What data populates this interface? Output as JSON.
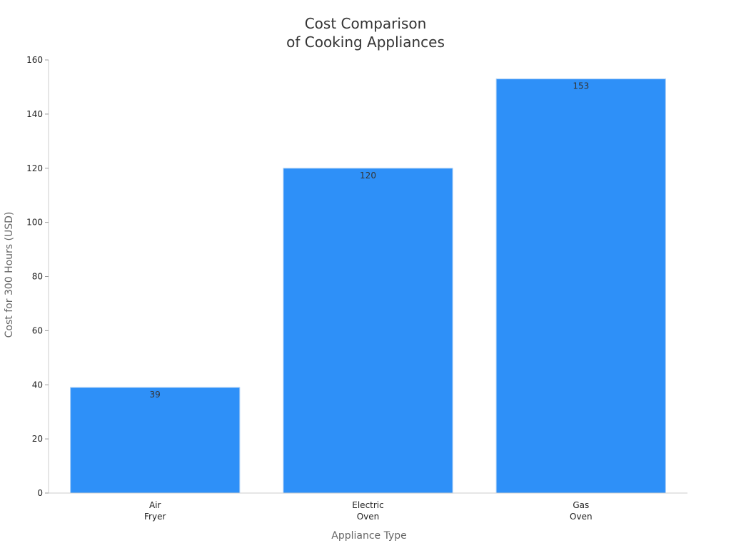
{
  "chart_data": {
    "type": "bar",
    "title_lines": [
      "Cost Comparison",
      "of Cooking Appliances"
    ],
    "xlabel": "Appliance Type",
    "ylabel": "Cost for 300 Hours (USD)",
    "categories": [
      [
        "Air",
        "Fryer"
      ],
      [
        "Electric",
        "Oven"
      ],
      [
        "Gas",
        "Oven"
      ]
    ],
    "values": [
      39,
      120,
      153
    ],
    "value_labels": [
      "39",
      "120",
      "153"
    ],
    "ylim": [
      0,
      160
    ],
    "yticks": [
      0,
      20,
      40,
      60,
      80,
      100,
      120,
      140,
      160
    ],
    "ytick_labels": [
      "0",
      "20",
      "40",
      "60",
      "80",
      "100",
      "120",
      "140",
      "160"
    ],
    "bar_color": "#2e90f8",
    "grid": false,
    "legend": "none"
  }
}
